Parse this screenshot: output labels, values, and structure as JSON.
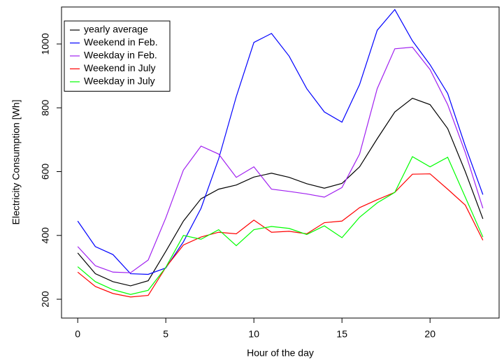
{
  "chart_data": {
    "type": "line",
    "xlabel": "Hour of the day",
    "ylabel": "Electricity Consumption [Wh]",
    "x": [
      0,
      1,
      2,
      3,
      4,
      5,
      6,
      7,
      8,
      9,
      10,
      11,
      12,
      13,
      14,
      15,
      16,
      17,
      18,
      19,
      20,
      21,
      22,
      23
    ],
    "series": [
      {
        "name": "yearly average",
        "color": "#000000",
        "values": [
          345,
          280,
          255,
          242,
          258,
          350,
          445,
          515,
          545,
          558,
          583,
          595,
          582,
          562,
          548,
          563,
          615,
          703,
          787,
          830,
          810,
          735,
          600,
          452
        ]
      },
      {
        "name": "Weekend in Feb.",
        "color": "#0000ff",
        "values": [
          445,
          365,
          340,
          280,
          278,
          298,
          380,
          485,
          640,
          835,
          1005,
          1033,
          962,
          860,
          787,
          755,
          873,
          1043,
          1108,
          1010,
          935,
          845,
          680,
          528
        ]
      },
      {
        "name": "Weekday in Feb.",
        "color": "#a020f0",
        "values": [
          365,
          305,
          285,
          283,
          323,
          455,
          605,
          680,
          655,
          582,
          615,
          545,
          538,
          530,
          520,
          550,
          655,
          860,
          985,
          990,
          920,
          810,
          660,
          485
        ]
      },
      {
        "name": "Weekend in July",
        "color": "#ff0000",
        "values": [
          285,
          240,
          218,
          207,
          212,
          300,
          370,
          395,
          410,
          405,
          448,
          410,
          413,
          405,
          440,
          445,
          487,
          512,
          535,
          592,
          593,
          545,
          495,
          385
        ]
      },
      {
        "name": "Weekday in July",
        "color": "#00ff00",
        "values": [
          302,
          255,
          230,
          215,
          228,
          300,
          400,
          388,
          418,
          368,
          418,
          428,
          422,
          403,
          430,
          393,
          457,
          502,
          535,
          647,
          615,
          645,
          520,
          395
        ]
      }
    ],
    "xlim": [
      -0.92,
      23.92
    ],
    "xticks": [
      0,
      5,
      10,
      15,
      20
    ],
    "ylim": [
      141,
      1116
    ],
    "yticks": [
      200,
      400,
      600,
      800,
      1000
    ],
    "legend": "topleft"
  }
}
